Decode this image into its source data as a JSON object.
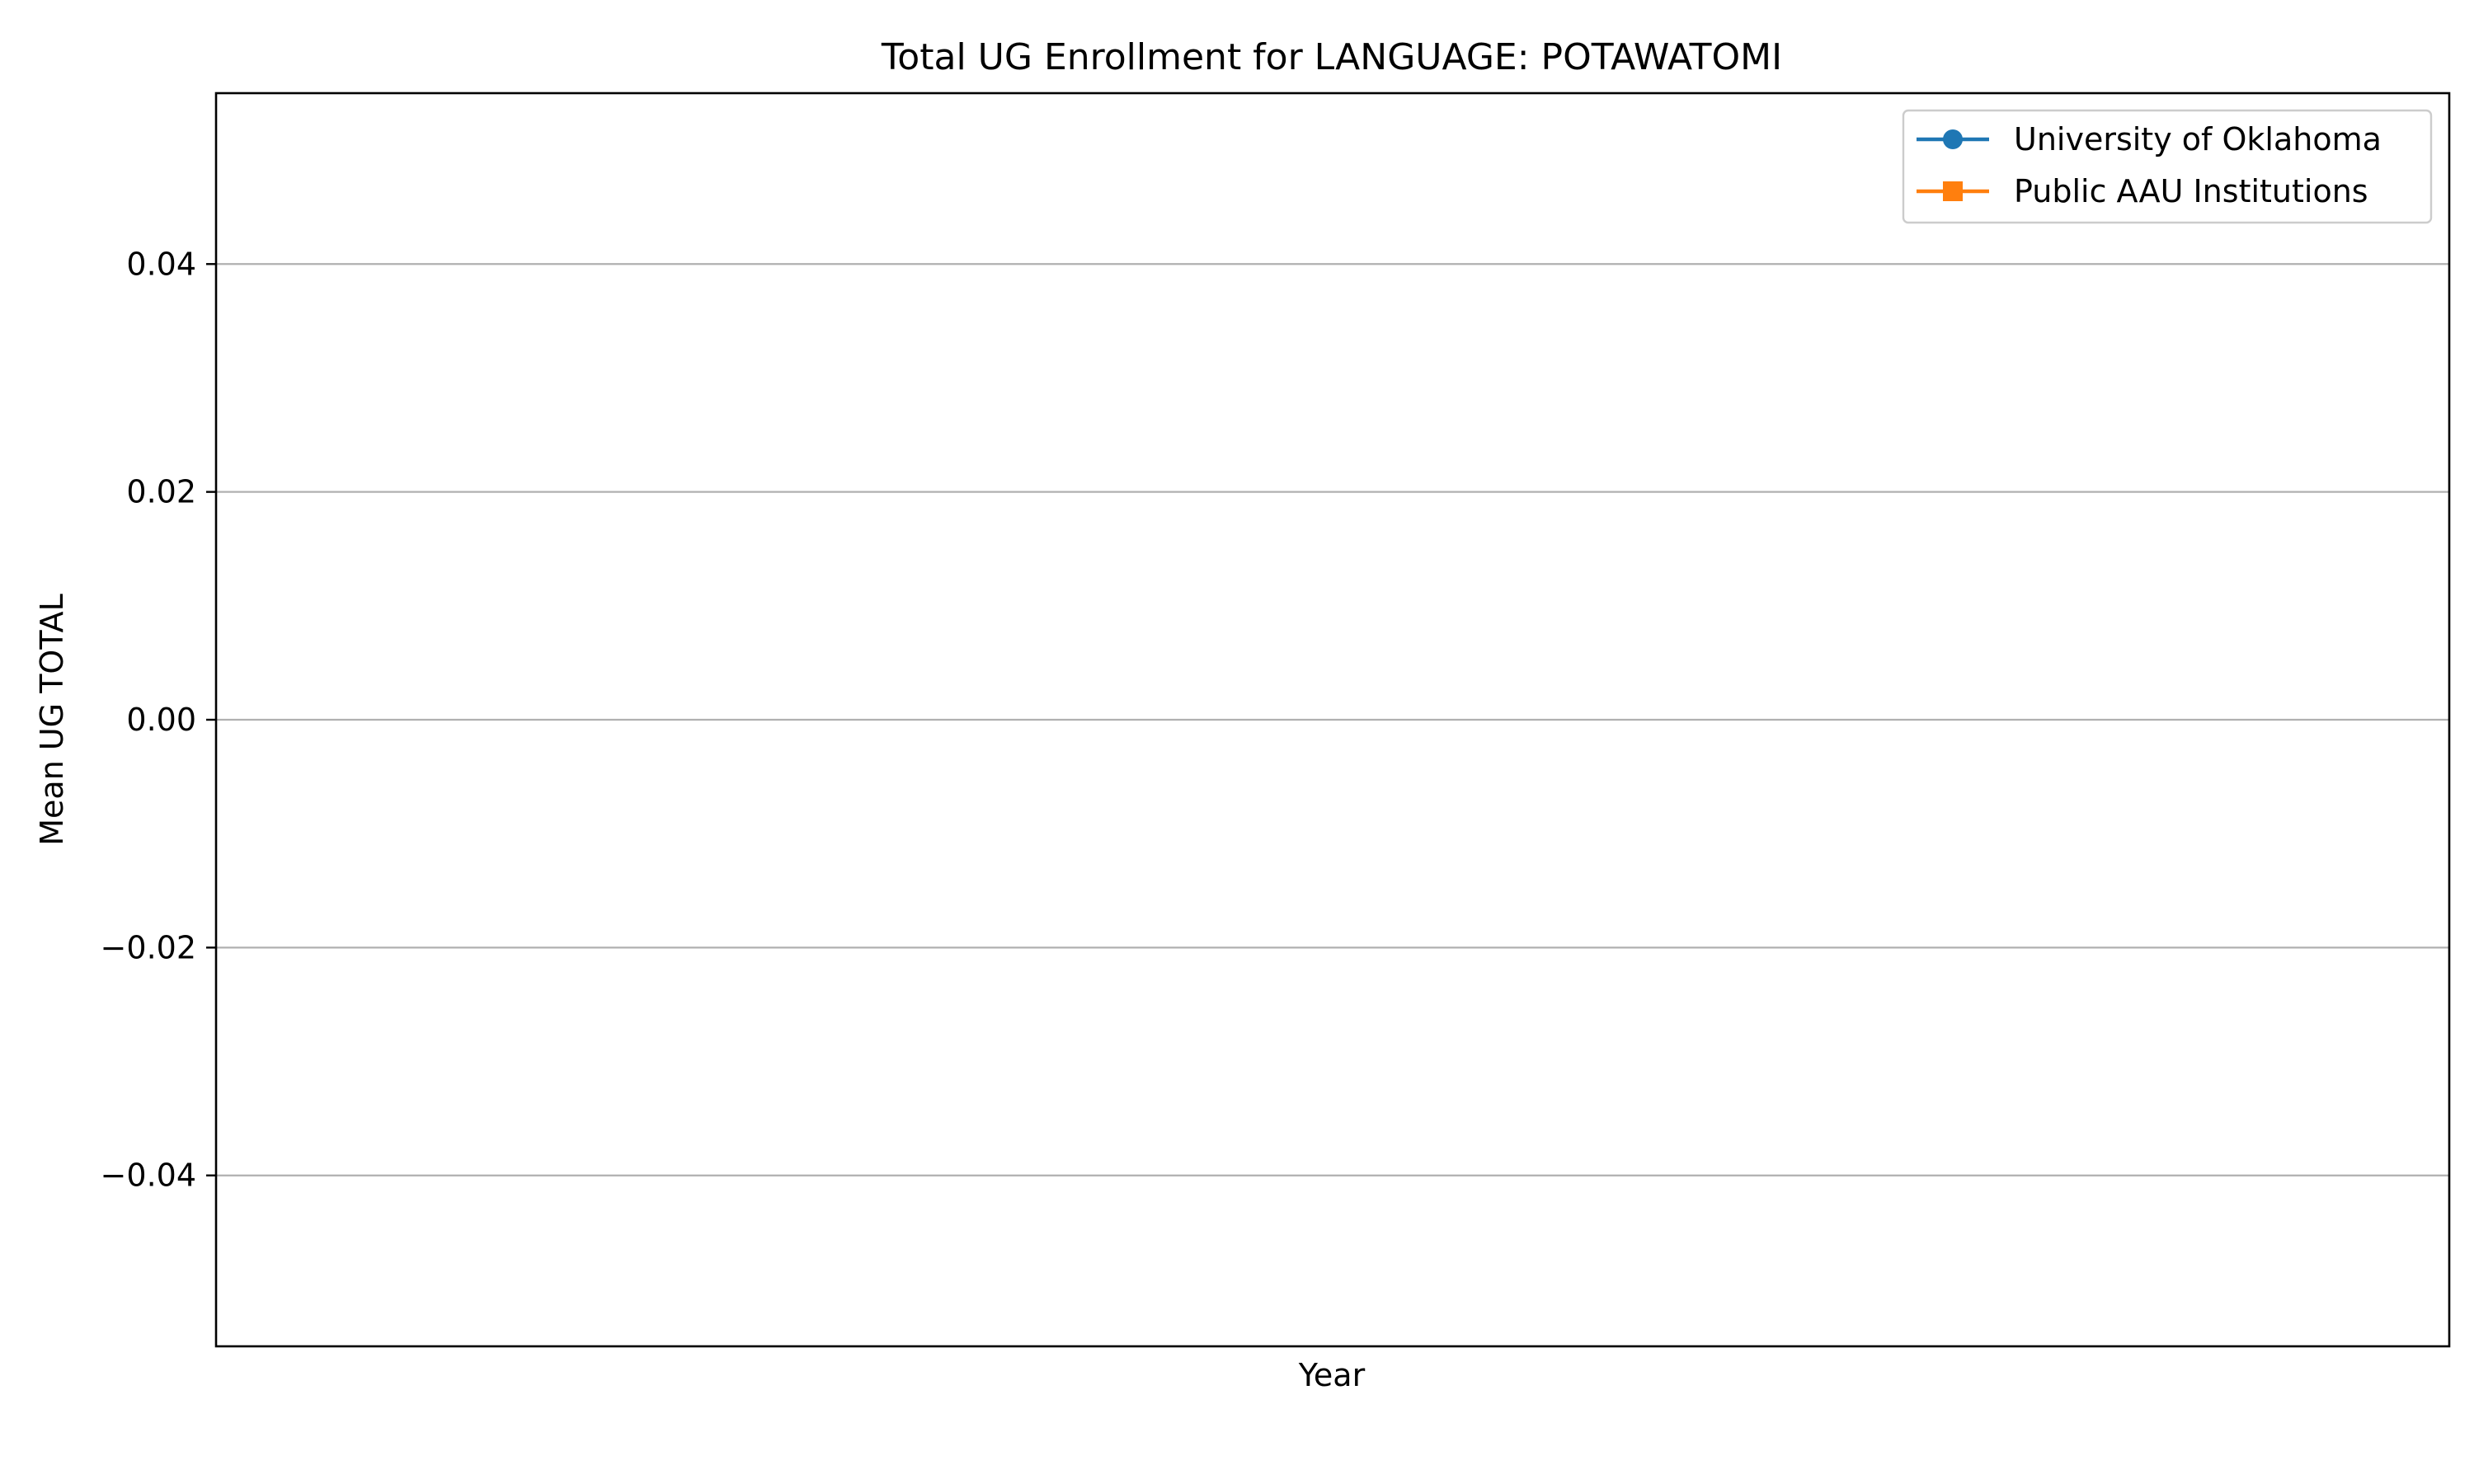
{
  "chart_data": {
    "type": "line",
    "title": "Total UG Enrollment for LANGUAGE: POTAWATOMI",
    "xlabel": "Year",
    "ylabel": "Mean UG TOTAL",
    "x": [],
    "ylim": [
      -0.055,
      0.055
    ],
    "yticks": [
      0.04,
      0.02,
      0.0,
      -0.02,
      -0.04
    ],
    "ytick_labels": [
      "0.04",
      "0.02",
      "0.00",
      "−0.02",
      "−0.04"
    ],
    "grid": "y",
    "legend_position": "top-right",
    "series": [
      {
        "name": "University of Oklahoma",
        "values": [],
        "color": "#1f77b4",
        "marker": "circle"
      },
      {
        "name": "Public AAU Institutions",
        "values": [],
        "color": "#ff7f0e",
        "marker": "square"
      }
    ]
  }
}
